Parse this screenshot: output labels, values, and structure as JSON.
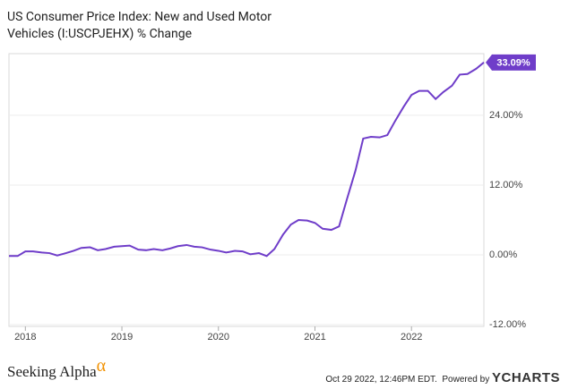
{
  "chart_data": {
    "type": "line",
    "title": "US Consumer Price Index: New and Used Motor Vehicles (I:USCPJEHX) % Change",
    "x": [
      2017.83,
      2017.92,
      2018.0,
      2018.08,
      2018.17,
      2018.25,
      2018.33,
      2018.42,
      2018.5,
      2018.58,
      2018.67,
      2018.75,
      2018.83,
      2018.92,
      2019.0,
      2019.08,
      2019.17,
      2019.25,
      2019.33,
      2019.42,
      2019.5,
      2019.58,
      2019.67,
      2019.75,
      2019.83,
      2019.92,
      2020.0,
      2020.08,
      2020.17,
      2020.25,
      2020.33,
      2020.42,
      2020.5,
      2020.58,
      2020.67,
      2020.75,
      2020.83,
      2020.92,
      2021.0,
      2021.08,
      2021.17,
      2021.25,
      2021.33,
      2021.42,
      2021.5,
      2021.58,
      2021.67,
      2021.75,
      2021.83,
      2021.92,
      2022.0,
      2022.08,
      2022.17,
      2022.25,
      2022.33,
      2022.42,
      2022.5,
      2022.58,
      2022.67,
      2022.75
    ],
    "series": [
      {
        "color": "#6f3dc9",
        "values": [
          -0.2,
          -0.2,
          0.6,
          0.6,
          0.4,
          0.3,
          -0.1,
          0.3,
          0.7,
          1.2,
          1.3,
          0.8,
          1.0,
          1.4,
          1.5,
          1.6,
          0.9,
          0.8,
          1.0,
          0.8,
          1.1,
          1.5,
          1.7,
          1.4,
          1.3,
          0.9,
          0.7,
          0.4,
          0.7,
          0.6,
          0.1,
          0.3,
          -0.2,
          1.0,
          3.5,
          5.2,
          6.0,
          5.9,
          5.5,
          4.5,
          4.3,
          4.9,
          9.5,
          14.5,
          20.0,
          20.3,
          20.2,
          20.6,
          23.0,
          25.5,
          27.5,
          28.2,
          28.2,
          26.8,
          28.0,
          29.1,
          31.0,
          31.1,
          32.0,
          33.09
        ],
        "value_labels": [
          null,
          null,
          null,
          null,
          null,
          null,
          null,
          null,
          null,
          null,
          null,
          null,
          null,
          null,
          null,
          null,
          null,
          null,
          null,
          null,
          null,
          null,
          null,
          null,
          null,
          null,
          null,
          null,
          null,
          null,
          null,
          null,
          null,
          null,
          null,
          null,
          null,
          null,
          null,
          null,
          null,
          null,
          null,
          null,
          null,
          null,
          null,
          null,
          null,
          null,
          null,
          null,
          null,
          null,
          null,
          null,
          null,
          null,
          null,
          "33.09%"
        ]
      }
    ],
    "xlim": [
      2017.83,
      2022.75
    ],
    "xticks": [
      2018,
      2019,
      2020,
      2021,
      2022
    ],
    "ylim": [
      -12.3,
      34.6
    ],
    "yticks": [
      {
        "value": -12,
        "label": "-12.00%"
      },
      {
        "value": 0,
        "label": "0.00%"
      },
      {
        "value": 12,
        "label": "12.00%"
      },
      {
        "value": 24,
        "label": "24.00%"
      }
    ],
    "grid": true
  },
  "footer": {
    "brand": "Seeking Alpha",
    "logo": "α",
    "timestamp": "Oct 29 2022, 12:46PM EDT.",
    "powered": "Powered by",
    "provider": "YCHARTS"
  }
}
